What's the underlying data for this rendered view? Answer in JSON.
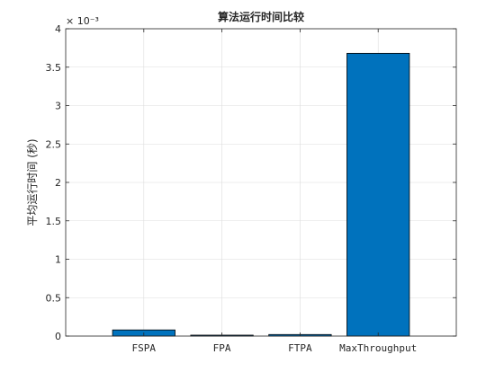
{
  "chart_data": {
    "type": "bar",
    "title": "算法运行时间比较",
    "xlabel": "",
    "ylabel": "平均运行时间 (秒)",
    "categories": [
      "FSPA",
      "FPA",
      "FTPA",
      "MaxThroughput"
    ],
    "values": [
      8e-05,
      1.2e-05,
      2e-05,
      0.00368
    ],
    "ylim": [
      0,
      0.004
    ],
    "yticks": [
      0,
      0.5,
      1,
      1.5,
      2,
      2.5,
      3,
      3.5,
      4
    ],
    "ytick_labels": [
      "0",
      "0.5",
      "1",
      "1.5",
      "2",
      "2.5",
      "3",
      "3.5",
      "4"
    ],
    "y_exponent_label": "× 10⁻³",
    "grid": true,
    "bar_color": "#0072BD"
  }
}
